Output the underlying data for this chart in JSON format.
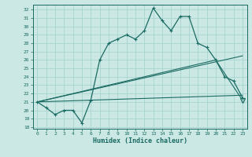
{
  "xlabel": "Humidex (Indice chaleur)",
  "bg_color": "#cce8e5",
  "grid_color": "#a8d4d0",
  "line_color": "#1a6b62",
  "xlim_min": -0.5,
  "xlim_max": 23.5,
  "ylim_min": 17.8,
  "ylim_max": 32.6,
  "xticks": [
    0,
    1,
    2,
    3,
    4,
    5,
    6,
    7,
    8,
    9,
    10,
    11,
    12,
    13,
    14,
    15,
    16,
    17,
    18,
    19,
    20,
    21,
    22,
    23
  ],
  "yticks": [
    18,
    19,
    20,
    21,
    22,
    23,
    24,
    25,
    26,
    27,
    28,
    29,
    30,
    31,
    32
  ],
  "main_x": [
    0,
    1,
    2,
    3,
    4,
    5,
    6,
    7,
    8,
    9,
    10,
    11,
    12,
    13,
    14,
    15,
    16,
    17,
    18,
    19,
    20,
    21,
    22,
    23
  ],
  "main_y": [
    21.0,
    20.3,
    19.5,
    20.0,
    20.0,
    18.5,
    21.2,
    26.0,
    28.0,
    28.5,
    29.0,
    28.5,
    29.5,
    32.2,
    30.7,
    29.5,
    31.2,
    31.2,
    28.0,
    27.5,
    26.0,
    24.0,
    23.5,
    21.5
  ],
  "trend1_x": [
    0,
    23
  ],
  "trend1_y": [
    21.0,
    21.8
  ],
  "trend2_x": [
    0,
    20,
    23
  ],
  "trend2_y": [
    21.0,
    26.0,
    21.2
  ],
  "trend3_x": [
    0,
    23
  ],
  "trend3_y": [
    21.0,
    26.5
  ],
  "xlabel_fontsize": 6,
  "tick_fontsize": 4.5,
  "fig_width": 3.2,
  "fig_height": 2.0,
  "dpi": 100
}
